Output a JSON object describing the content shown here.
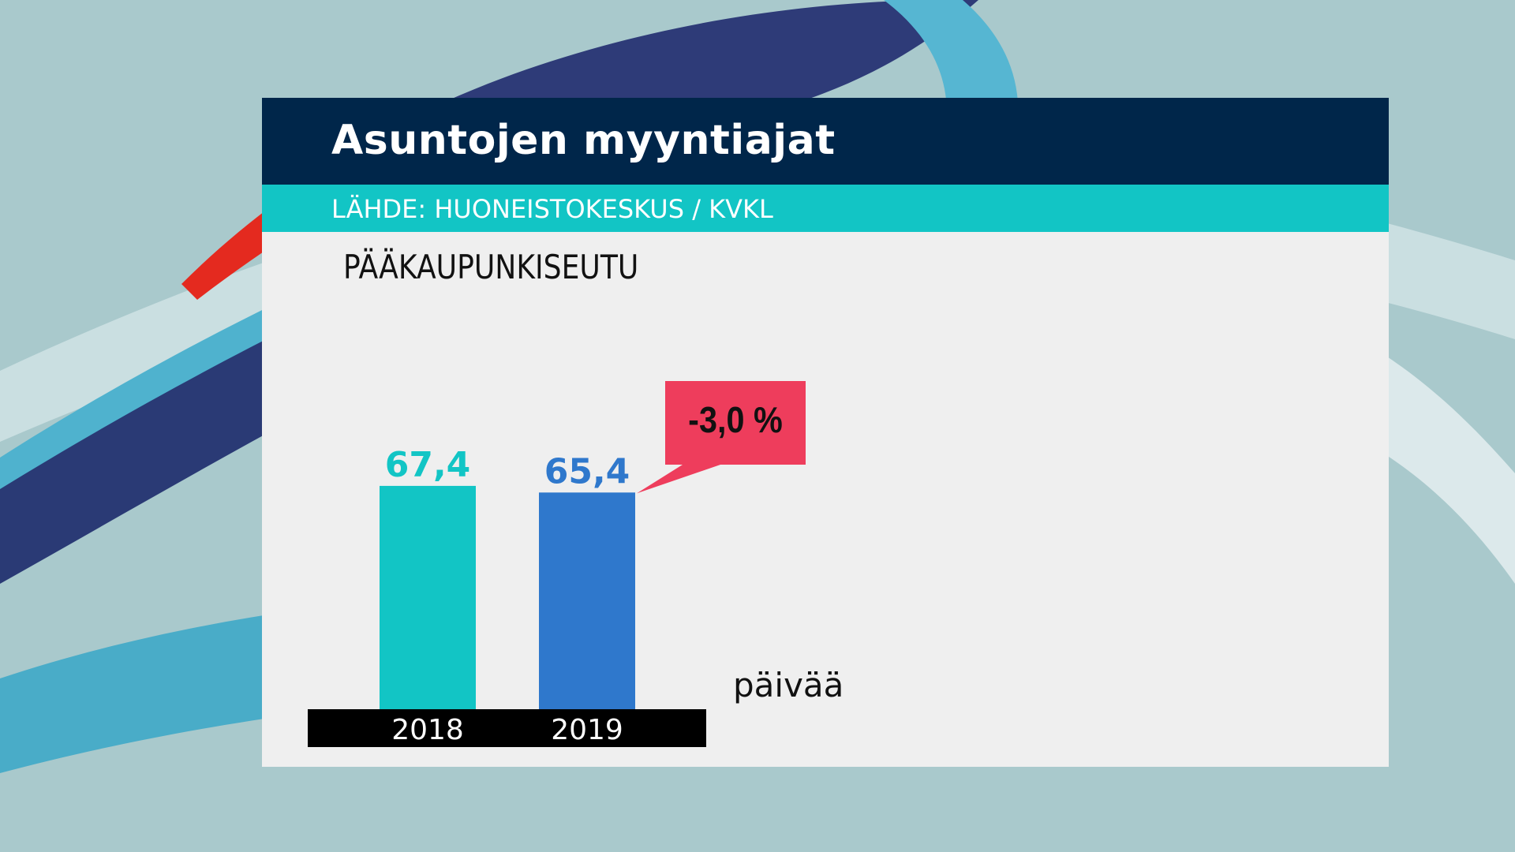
{
  "title": "Asuntojen myyntiajat",
  "source": "LÄHDE: HUONEISTOKESKUS / KVKL",
  "region": "PÄÄKAUPUNKISEUTU",
  "unit": "päivää",
  "change_label": "-3,0 %",
  "colors": {
    "title_bar": "#00264a",
    "source_bar": "#12c5c5",
    "bar_2018": "#12c5c5",
    "bar_2019": "#2f78cc",
    "change_badge": "#ee3d5c",
    "axis_band": "#000000"
  },
  "chart_data": {
    "type": "bar",
    "title": "Asuntojen myyntiajat",
    "subtitle": "PÄÄKAUPUNKISEUTU",
    "categories": [
      "2018",
      "2019"
    ],
    "values": [
      67.4,
      65.4
    ],
    "data_labels": [
      "67,4",
      "65,4"
    ],
    "ylabel": "päivää",
    "ylim": [
      0,
      80
    ],
    "grid": false,
    "annotation": "-3,0 %"
  }
}
